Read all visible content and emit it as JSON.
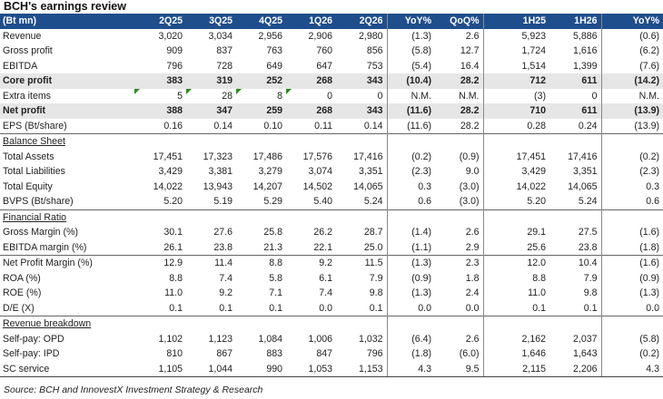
{
  "title": "BCH's earnings review",
  "header": {
    "label": "(Bt mn)",
    "cols": [
      "2Q25",
      "3Q25",
      "4Q25",
      "1Q26",
      "2Q26",
      "YoY%",
      "QoQ%",
      "1H25",
      "1H26",
      "YoY%"
    ]
  },
  "rows": [
    {
      "label": "Revenue",
      "v": [
        "3,020",
        "3,034",
        "2,956",
        "2,906",
        "2,980",
        "(1.3)",
        "2.6",
        "5,923",
        "5,886",
        "(0.6)"
      ]
    },
    {
      "label": "Gross profit",
      "v": [
        "909",
        "837",
        "763",
        "760",
        "856",
        "(5.8)",
        "12.7",
        "1,724",
        "1,616",
        "(6.2)"
      ]
    },
    {
      "label": "EBITDA",
      "v": [
        "796",
        "728",
        "649",
        "647",
        "753",
        "(5.4)",
        "16.4",
        "1,514",
        "1,399",
        "(7.6)"
      ]
    },
    {
      "label": "Core profit",
      "v": [
        "383",
        "319",
        "252",
        "268",
        "343",
        "(10.4)",
        "28.2",
        "712",
        "611",
        "(14.2)"
      ]
    },
    {
      "label": "Extra items",
      "v": [
        "5",
        "28",
        "8",
        "0",
        "0",
        "N.M.",
        "N.M.",
        "(3)",
        "0",
        "N.M."
      ]
    },
    {
      "label": "Net profit",
      "v": [
        "388",
        "347",
        "259",
        "268",
        "343",
        "(11.6)",
        "28.2",
        "710",
        "611",
        "(13.9)"
      ]
    },
    {
      "label": "EPS (Bt/share)",
      "v": [
        "0.16",
        "0.14",
        "0.10",
        "0.11",
        "0.14",
        "(11.6)",
        "28.2",
        "0.28",
        "0.24",
        "(13.9)"
      ]
    },
    {
      "label": "Balance Sheet",
      "v": [
        "",
        "",
        "",
        "",
        "",
        "",
        "",
        "",
        "",
        ""
      ]
    },
    {
      "label": "Total Assets",
      "v": [
        "17,451",
        "17,323",
        "17,486",
        "17,576",
        "17,416",
        "(0.2)",
        "(0.9)",
        "17,451",
        "17,416",
        "(0.2)"
      ]
    },
    {
      "label": "Total Liabilities",
      "v": [
        "3,429",
        "3,381",
        "3,279",
        "3,074",
        "3,351",
        "(2.3)",
        "9.0",
        "3,429",
        "3,351",
        "(2.3)"
      ]
    },
    {
      "label": "Total Equity",
      "v": [
        "14,022",
        "13,943",
        "14,207",
        "14,502",
        "14,065",
        "0.3",
        "(3.0)",
        "14,022",
        "14,065",
        "0.3"
      ]
    },
    {
      "label": "BVPS (Bt/share)",
      "v": [
        "5.20",
        "5.19",
        "5.29",
        "5.40",
        "5.24",
        "0.6",
        "(3.0)",
        "5.20",
        "5.24",
        "0.6"
      ]
    },
    {
      "label": "Financial Ratio",
      "v": [
        "",
        "",
        "",
        "",
        "",
        "",
        "",
        "",
        "",
        ""
      ]
    },
    {
      "label": "Gross Margin (%)",
      "v": [
        "30.1",
        "27.6",
        "25.8",
        "26.2",
        "28.7",
        "(1.4)",
        "2.6",
        "29.1",
        "27.5",
        "(1.6)"
      ]
    },
    {
      "label": "EBITDA margin (%)",
      "v": [
        "26.1",
        "23.8",
        "21.3",
        "22.1",
        "25.0",
        "(1.1)",
        "2.9",
        "25.6",
        "23.8",
        "(1.8)"
      ]
    },
    {
      "label": "Net Profit Margin (%)",
      "v": [
        "12.9",
        "11.4",
        "8.8",
        "9.2",
        "11.5",
        "(1.3)",
        "2.3",
        "12.0",
        "10.4",
        "(1.6)"
      ]
    },
    {
      "label": "ROA (%)",
      "v": [
        "8.8",
        "7.4",
        "5.8",
        "6.1",
        "7.9",
        "(0.9)",
        "1.8",
        "8.8",
        "7.9",
        "(0.9)"
      ]
    },
    {
      "label": "ROE (%)",
      "v": [
        "11.0",
        "9.2",
        "7.1",
        "7.4",
        "9.8",
        "(1.3)",
        "2.4",
        "11.0",
        "9.8",
        "(1.3)"
      ]
    },
    {
      "label": "D/E (X)",
      "v": [
        "0.1",
        "0.1",
        "0.1",
        "0.0",
        "0.1",
        "0.0",
        "0.0",
        "0.1",
        "0.1",
        "0.0"
      ]
    },
    {
      "label": "Revenue breakdown",
      "v": [
        "",
        "",
        "",
        "",
        "",
        "",
        "",
        "",
        "",
        ""
      ]
    },
    {
      "label": "Self-pay: OPD",
      "v": [
        "1,102",
        "1,123",
        "1,084",
        "1,006",
        "1,032",
        "(6.4)",
        "2.6",
        "2,162",
        "2,037",
        "(5.8)"
      ]
    },
    {
      "label": "Self-pay: IPD",
      "v": [
        "810",
        "867",
        "883",
        "847",
        "796",
        "(1.8)",
        "(6.0)",
        "1,646",
        "1,643",
        "(0.2)"
      ]
    },
    {
      "label": "SC service",
      "v": [
        "1,105",
        "1,044",
        "990",
        "1,053",
        "1,153",
        "4.3",
        "9.5",
        "2,115",
        "2,206",
        "4.3"
      ]
    }
  ],
  "source": "Source: BCH and InnovestX Investment Strategy & Research",
  "colors": {
    "header_bg": "#1f4e8c",
    "highlight_bg": "#e6e6e6",
    "marker": "#2e8b1e"
  }
}
